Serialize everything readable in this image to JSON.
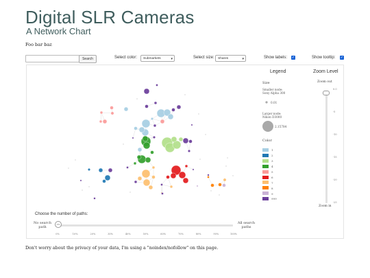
{
  "header": {
    "title": "Digital SLR Cameras",
    "subtitle": "A Network Chart",
    "note": "Foo bar baz"
  },
  "controls": {
    "search_value": "",
    "search_placeholder": "",
    "search_button": "Search",
    "color_label": "Select color:",
    "color_value": "Submarkets",
    "size_label": "Select size:",
    "size_value": "Shares",
    "show_labels_label": "Show labels:",
    "show_labels_checked": true,
    "show_tooltip_label": "Show tooltip:",
    "show_tooltip_checked": true
  },
  "legend": {
    "title": "Legend",
    "size_heading": "Size",
    "smaller_node_label": "Smaller node:",
    "smaller_node_name": "Sony Alpha 300",
    "smaller_node_value": "0.01",
    "larger_node_label": "Larger node:",
    "larger_node_name": "Nikon D3000",
    "larger_node_value": "2.15784",
    "color_heading": "Color",
    "colors": [
      {
        "label": "1",
        "color": "#a6cee3"
      },
      {
        "label": "2",
        "color": "#1f78b4"
      },
      {
        "label": "3",
        "color": "#b2df8a"
      },
      {
        "label": "4",
        "color": "#33a02c"
      },
      {
        "label": "5",
        "color": "#fb9a99"
      },
      {
        "label": "6",
        "color": "#e31a1c"
      },
      {
        "label": "7",
        "color": "#fdbf6f"
      },
      {
        "label": "8",
        "color": "#ff7f00"
      },
      {
        "label": "9",
        "color": "#cab2d6"
      },
      {
        "label": "999",
        "color": "#6a3d9a"
      }
    ]
  },
  "zoom": {
    "title": "Zoom Level",
    "zoom_out": "Zoom out",
    "zoom_in": "Zoom in",
    "value": 0.0,
    "ticks": [
      "0.0",
      "-5",
      "-10",
      "-15",
      "-20",
      "-25"
    ]
  },
  "paths": {
    "title": "Choose the number of paths:",
    "left_label": "No search path",
    "right_label": "All search paths",
    "thumb_label": "0%",
    "value_percent": 0,
    "ticks": [
      "0%",
      "10%",
      "20%",
      "30%",
      "40%",
      "50%",
      "60%",
      "70%",
      "80%",
      "90%",
      "100%"
    ]
  },
  "footer": "Don't worry about the privacy of your data, I'm using a \"noindex/nofollow\" on this page."
}
